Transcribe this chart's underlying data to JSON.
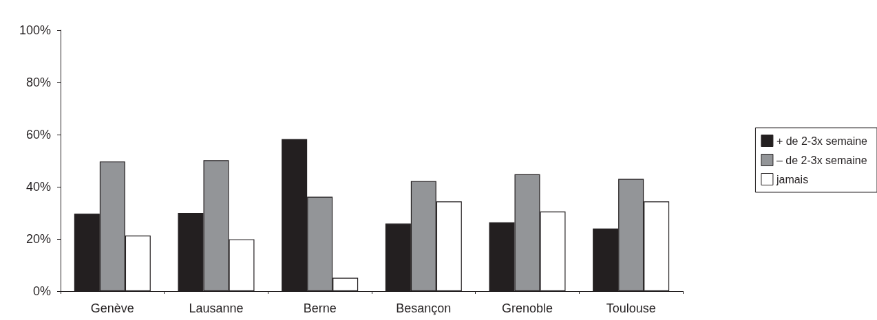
{
  "chart_data": {
    "type": "bar",
    "categories": [
      "Genève",
      "Lausanne",
      "Berne",
      "Besançon",
      "Grenoble",
      "Toulouse"
    ],
    "series": [
      {
        "name": "+ de 2-3x semaine",
        "color": "#231f20",
        "values": [
          29.7,
          30,
          58.3,
          25.9,
          26.4,
          24
        ]
      },
      {
        "name": "– de 2-3x semaine",
        "color": "#939598",
        "values": [
          49.7,
          50.2,
          36.2,
          42.2,
          44.8,
          43
        ]
      },
      {
        "name": "jamais",
        "color": "#ffffff",
        "values": [
          21.3,
          19.9,
          5.1,
          34.4,
          30.5,
          34.4
        ]
      }
    ],
    "ylim": [
      0,
      100
    ],
    "yticks": [
      {
        "value": 0,
        "label": "0%"
      },
      {
        "value": 20,
        "label": "20%"
      },
      {
        "value": 40,
        "label": "40%"
      },
      {
        "value": 60,
        "label": "60%"
      },
      {
        "value": 80,
        "label": "80%"
      },
      {
        "value": 100,
        "label": "100%"
      }
    ],
    "grid": false,
    "legend": "right"
  }
}
